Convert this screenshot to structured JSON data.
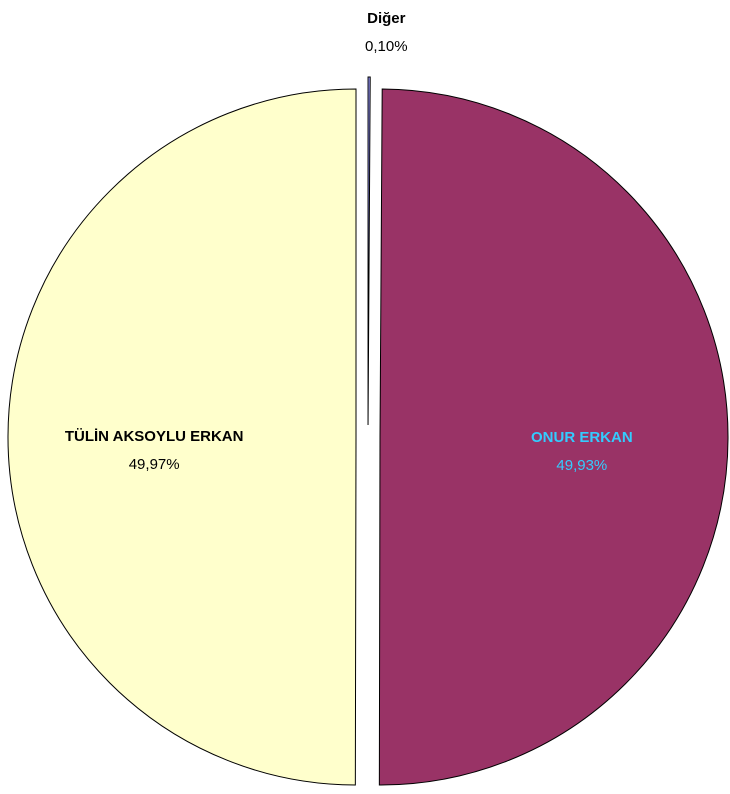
{
  "chart_data": {
    "type": "pie",
    "categories": [
      "Diğer",
      "ONUR ERKAN",
      "TÜLİN AKSOYLU ERKAN"
    ],
    "values": [
      0.1,
      49.93,
      49.97
    ],
    "value_labels": [
      "0,10%",
      "49,93%",
      "49,97%"
    ],
    "colors": [
      "#9999ff",
      "#993366",
      "#ffffcc"
    ],
    "label_colors": [
      "#000000",
      "#33ccff",
      "#000000"
    ]
  }
}
